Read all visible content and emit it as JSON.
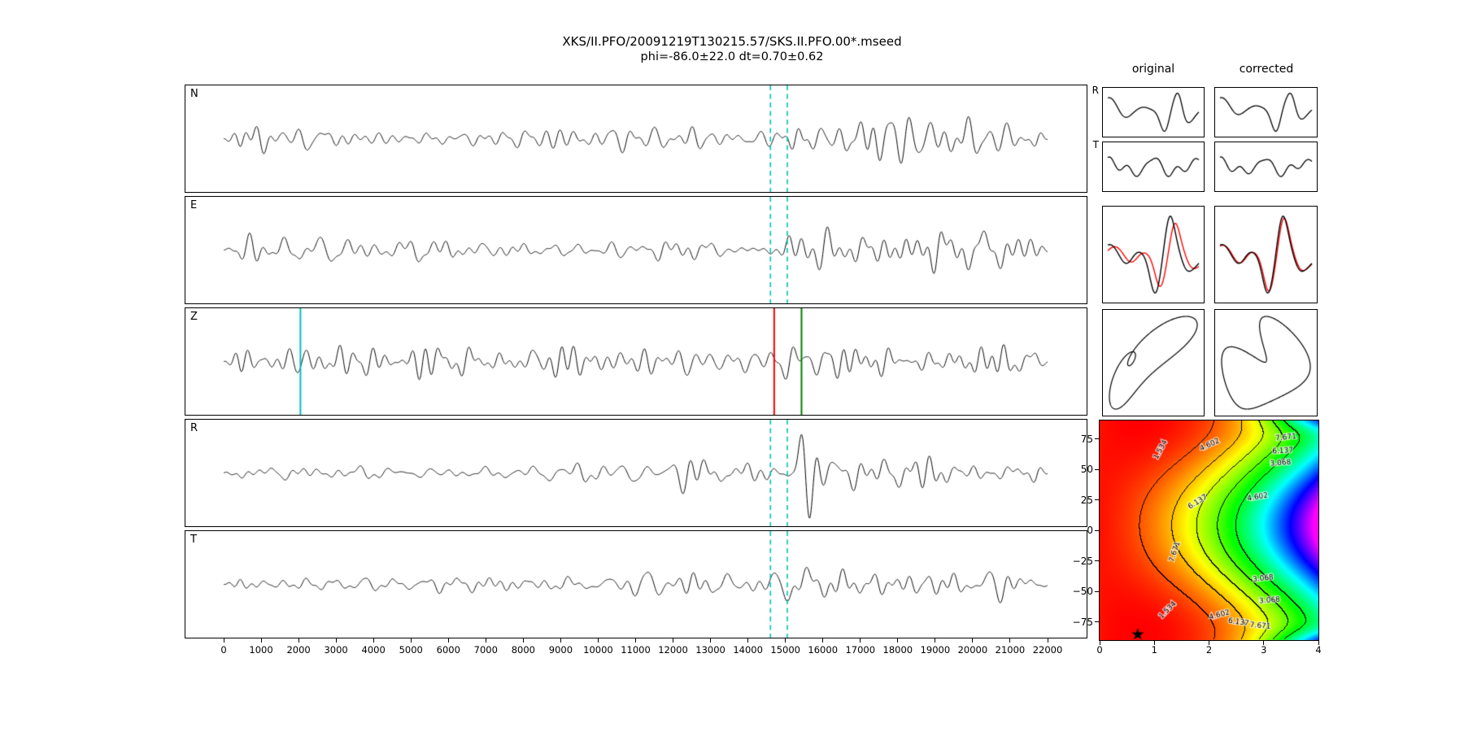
{
  "title": {
    "line1": "XKS/II.PFO/20091219T130215.57/SKS.II.PFO.00*.mseed",
    "line2": "phi=-86.0±22.0 dt=0.70±0.62"
  },
  "side": {
    "col_headers": [
      "original",
      "corrected"
    ],
    "row_labels": [
      "R",
      "T"
    ]
  },
  "colors": {
    "trace": "#000000",
    "window_marker": "#00bfbf",
    "pick_red": "#ff0000",
    "pick_green": "#008000",
    "overlay_red": "#ff0000",
    "background": "#ffffff"
  },
  "chart_data": {
    "seismograms": {
      "type": "line",
      "x_range": [
        0,
        22000
      ],
      "x_ticks": [
        0,
        1000,
        2000,
        3000,
        4000,
        5000,
        6000,
        7000,
        8000,
        9000,
        10000,
        11000,
        12000,
        13000,
        14000,
        15000,
        16000,
        17000,
        18000,
        19000,
        20000,
        21000,
        22000
      ],
      "panels": [
        {
          "label": "N",
          "seed": 11,
          "base": 0.45,
          "burst": 1.0,
          "coda": 0.52,
          "swell": 0.12,
          "markers": [
            {
              "style": "dashed",
              "color": "#00bfbf",
              "x": 14600
            },
            {
              "style": "dashed",
              "color": "#00bfbf",
              "x": 15050
            }
          ]
        },
        {
          "label": "E",
          "seed": 23,
          "base": 0.45,
          "burst": 1.05,
          "coda": 0.5,
          "swell": 0.12,
          "markers": [
            {
              "style": "dashed",
              "color": "#00bfbf",
              "x": 14600
            },
            {
              "style": "dashed",
              "color": "#00bfbf",
              "x": 15050
            }
          ]
        },
        {
          "label": "Z",
          "seed": 37,
          "base": 0.72,
          "burst": 0.2,
          "coda": 0.12,
          "swell": 0.3,
          "markers": [
            {
              "style": "solid",
              "color": "#00bfbf",
              "x": 2050
            },
            {
              "style": "solid",
              "color": "#ff0000",
              "x": 14700
            },
            {
              "style": "solid",
              "color": "#008000",
              "x": 15430
            }
          ]
        },
        {
          "label": "R",
          "seed": 41,
          "base": 0.45,
          "burst": 1.1,
          "coda": 0.5,
          "swell": 0.12,
          "markers": [
            {
              "style": "dashed",
              "color": "#00bfbf",
              "x": 14600
            },
            {
              "style": "dashed",
              "color": "#00bfbf",
              "x": 15050
            }
          ]
        },
        {
          "label": "T",
          "seed": 53,
          "base": 0.42,
          "burst": 0.75,
          "coda": 0.55,
          "swell": 0.12,
          "markers": [
            {
              "style": "dashed",
              "color": "#00bfbf",
              "x": 14600
            },
            {
              "style": "dashed",
              "color": "#00bfbf",
              "x": 15050
            }
          ]
        }
      ]
    },
    "cutouts": {
      "col_headers": [
        "original",
        "corrected"
      ],
      "rows": [
        "R-window",
        "T-window",
        "fast-slow-overlay",
        "particle-motion"
      ]
    },
    "error_surface": {
      "type": "heatmap",
      "x_range": [
        0,
        4
      ],
      "x_ticks": [
        0,
        1,
        2,
        3,
        4
      ],
      "y_range": [
        -90,
        90
      ],
      "y_ticks": [
        75,
        50,
        25,
        0,
        -25,
        -50,
        -75
      ],
      "contour_levels": [
        1.534,
        3.068,
        4.602,
        6.137,
        7.671
      ],
      "best_phi": -86.0,
      "best_dt": 0.7,
      "labels": [
        {
          "text": "1.534",
          "dt": 1.12,
          "phi": 66,
          "rot": -62
        },
        {
          "text": "4.602",
          "dt": 2.02,
          "phi": 70,
          "rot": -25
        },
        {
          "text": "7.671",
          "dt": 3.42,
          "phi": 76,
          "rot": -6
        },
        {
          "text": "6.137",
          "dt": 3.36,
          "phi": 65,
          "rot": -4
        },
        {
          "text": "3.068",
          "dt": 3.32,
          "phi": 55,
          "rot": -4
        },
        {
          "text": "4.602",
          "dt": 2.9,
          "phi": 27,
          "rot": -10
        },
        {
          "text": "6.137",
          "dt": 1.8,
          "phi": 23,
          "rot": -32
        },
        {
          "text": "7.671",
          "dt": 1.38,
          "phi": -18,
          "rot": -72
        },
        {
          "text": "3.068",
          "dt": 3.0,
          "phi": -40,
          "rot": -6
        },
        {
          "text": "3.068",
          "dt": 3.12,
          "phi": -58,
          "rot": -4
        },
        {
          "text": "4.602",
          "dt": 2.2,
          "phi": -70,
          "rot": -15
        },
        {
          "text": "1.534",
          "dt": 1.25,
          "phi": -66,
          "rot": -45
        },
        {
          "text": "6.137",
          "dt": 2.55,
          "phi": -76,
          "rot": 8
        },
        {
          "text": "7.671",
          "dt": 2.95,
          "phi": -79,
          "rot": 5
        }
      ]
    }
  }
}
